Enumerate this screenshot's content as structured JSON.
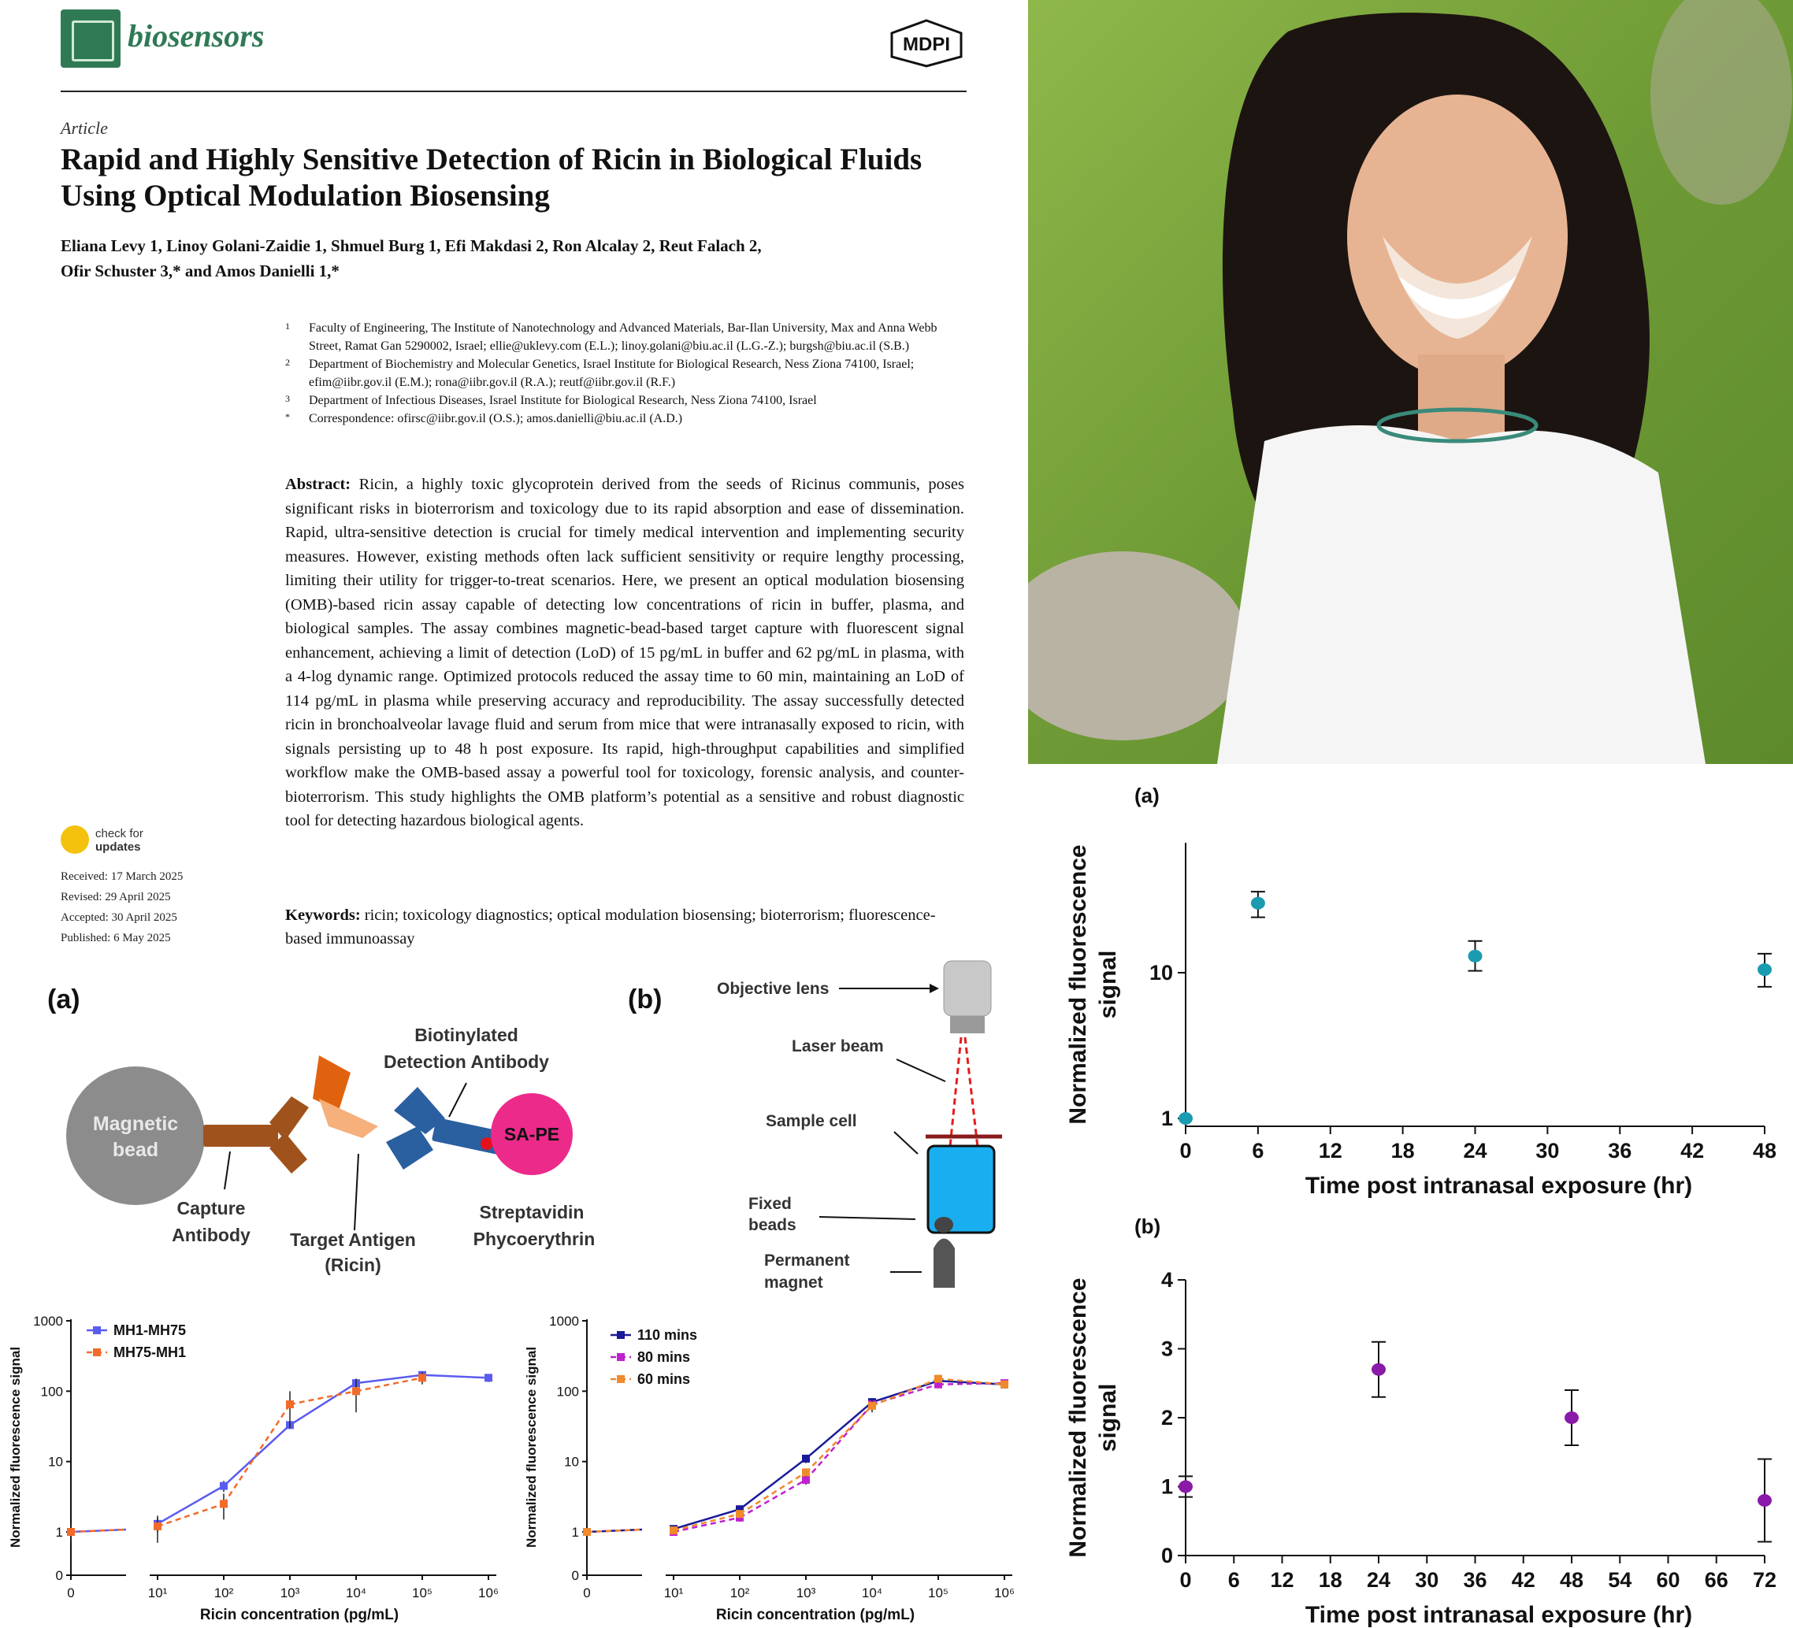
{
  "paper": {
    "journal": "biosensors",
    "publisher_logo_text": "MDPI",
    "article_type": "Article",
    "title": "Rapid and Highly Sensitive Detection of Ricin in Biological Fluids Using Optical Modulation Biosensing",
    "authors_line1": "Eliana Levy 1, Linoy Golani-Zaidie 1, Shmuel Burg 1, Efi Makdasi 2, Ron Alcalay 2, Reut Falach 2,",
    "authors_line2": "Ofir Schuster 3,* and Amos Danielli 1,*",
    "affiliations": [
      {
        "num": "1",
        "text": "Faculty of Engineering, The Institute of Nanotechnology and Advanced Materials, Bar-Ilan University, Max and Anna Webb Street, Ramat Gan 5290002, Israel; ellie@uklevy.com (E.L.); linoy.golani@biu.ac.il (L.G.-Z.); burgsh@biu.ac.il (S.B.)"
      },
      {
        "num": "2",
        "text": "Department of Biochemistry and Molecular Genetics, Israel Institute for Biological Research, Ness Ziona 74100, Israel; efim@iibr.gov.il (E.M.); rona@iibr.gov.il (R.A.); reutf@iibr.gov.il (R.F.)"
      },
      {
        "num": "3",
        "text": "Department of Infectious Diseases, Israel Institute for Biological Research, Ness Ziona 74100, Israel"
      },
      {
        "num": "*",
        "text": "Correspondence: ofirsc@iibr.gov.il (O.S.); amos.danielli@biu.ac.il (A.D.)"
      }
    ],
    "abstract_label": "Abstract:",
    "abstract": "Ricin, a highly toxic glycoprotein derived from the seeds of Ricinus communis, poses significant risks in bioterrorism and toxicology due to its rapid absorption and ease of dissemination. Rapid, ultra-sensitive detection is crucial for timely medical intervention and implementing security measures. However, existing methods often lack sufficient sensitivity or require lengthy processing, limiting their utility for trigger-to-treat scenarios. Here, we present an optical modulation biosensing (OMB)-based ricin assay capable of detecting low concentrations of ricin in buffer, plasma, and biological samples. The assay combines magnetic-bead-based target capture with fluorescent signal enhancement, achieving a limit of detection (LoD) of 15 pg/mL in buffer and 62 pg/mL in plasma, with a 4-log dynamic range. Optimized protocols reduced the assay time to 60 min, maintaining an LoD of 114 pg/mL in plasma while preserving accuracy and reproducibility. The assay successfully detected ricin in bronchoalveolar lavage fluid and serum from mice that were intranasally exposed to ricin, with signals persisting up to 48 h post exposure. Its rapid, high-throughput capabilities and simplified workflow make the OMB-based assay a powerful tool for toxicology, forensic analysis, and counter-bioterrorism. This study highlights the OMB platform’s potential as a sensitive and robust diagnostic tool for detecting hazardous biological agents.",
    "keywords_label": "Keywords:",
    "keywords": "ricin; toxicology diagnostics; optical modulation biosensing; bioterrorism; fluorescence-based immunoassay",
    "check_updates_line1": "check for",
    "check_updates_line2": "updates",
    "dates": [
      "Received: 17 March 2025",
      "Revised: 29 April 2025",
      "Accepted: 30 April 2025",
      "Published: 6 May 2025"
    ]
  },
  "schematic_a": {
    "label": "(a)",
    "magnetic_bead": "Magnetic bead",
    "magnetic_line1": "Magnetic",
    "magnetic_line2": "bead",
    "capture_line1": "Capture",
    "capture_line2": "Antibody",
    "target_line1": "Target Antigen",
    "target_line2": "(Ricin)",
    "biotin_line1": "Biotinylated",
    "biotin_line2": "Detection Antibody",
    "sape": "SA-PE",
    "strep_line1": "Streptavidin",
    "strep_line2": "Phycoerythrin",
    "colors": {
      "bead": "#8c8c8c",
      "capture": "#a0521c",
      "antigen_dark": "#e0620f",
      "antigen_light": "#f6b07c",
      "detection": "#2a5fa0",
      "sape": "#ec2a8a",
      "biotin": "#e4101c"
    }
  },
  "schematic_b": {
    "label": "(b)",
    "objective": "Objective lens",
    "laser": "Laser beam",
    "sample_cell": "Sample cell",
    "fixed_line1": "Fixed",
    "fixed_line2": "beads",
    "perm_line1": "Permanent",
    "perm_line2": "magnet",
    "colors": {
      "cell": "#19aef0",
      "laser": "#e41c1c",
      "arrow": "#8b1a1a"
    }
  },
  "chart_data": [
    {
      "type": "line",
      "ylabel": "Normalized fluorescence signal",
      "xlabel": "Ricin concentration (pg/mL)",
      "yscale": "log",
      "ylim": [
        0,
        1000
      ],
      "yticks": [
        "1000",
        "100",
        "10",
        "1",
        "0"
      ],
      "xticks": [
        "0",
        "10¹",
        "10²",
        "10³",
        "10⁴",
        "10⁵",
        "10⁶"
      ],
      "x": [
        0,
        10,
        100,
        1000,
        10000,
        100000,
        1000000
      ],
      "series": [
        {
          "name": "MH1-MH75",
          "color": "#5b5bf0",
          "values": [
            1,
            1.3,
            4.5,
            33,
            130,
            170,
            155
          ],
          "err": [
            0.3,
            0.3,
            0.8,
            4,
            20,
            15,
            20
          ]
        },
        {
          "name": "MH75-MH1",
          "color": "#f26b2a",
          "values": [
            1,
            1.2,
            2.5,
            65,
            100,
            155,
            null
          ],
          "err": [
            0.2,
            0.5,
            1,
            35,
            50,
            30,
            null
          ]
        }
      ]
    },
    {
      "type": "line",
      "ylabel": "Normalized fluorescence signal",
      "xlabel": "Ricin concentration (pg/mL)",
      "yscale": "log",
      "ylim": [
        0,
        1000
      ],
      "yticks": [
        "1000",
        "100",
        "10",
        "1",
        "0"
      ],
      "xticks": [
        "0",
        "10¹",
        "10²",
        "10³",
        "10⁴",
        "10⁵",
        "10⁶"
      ],
      "x": [
        0,
        10,
        100,
        1000,
        10000,
        100000,
        1000000
      ],
      "series": [
        {
          "name": "110 mins",
          "color": "#1a1a9a",
          "values": [
            1,
            1.1,
            2.1,
            11,
            70,
            140,
            125
          ],
          "err": [
            0.1,
            0.1,
            0.2,
            1.5,
            10,
            20,
            15
          ]
        },
        {
          "name": "80 mins",
          "color": "#c020d0",
          "values": [
            1,
            1.0,
            1.6,
            5.5,
            65,
            125,
            130
          ],
          "err": [
            0.1,
            0.1,
            0.2,
            0.8,
            10,
            15,
            15
          ]
        },
        {
          "name": "60 mins",
          "color": "#f08a2a",
          "values": [
            1,
            1.05,
            1.8,
            7,
            62,
            150,
            125
          ],
          "err": [
            0.1,
            0.1,
            0.2,
            1,
            12,
            20,
            15
          ]
        }
      ]
    },
    {
      "type": "scatter",
      "panel_label": "(a)",
      "ylabel_line1": "Normalized fluorescence",
      "ylabel_line2": "signal",
      "xlabel": "Time post intranasal exposure (hr)",
      "yscale": "log",
      "yticks": [
        "10",
        "1"
      ],
      "xticks": [
        "0",
        "6",
        "12",
        "18",
        "24",
        "30",
        "36",
        "42",
        "48"
      ],
      "xlim": [
        0,
        48
      ],
      "color": "#1a9bb0",
      "x": [
        0,
        6,
        24,
        48
      ],
      "y": [
        1,
        30,
        13,
        10.5
      ],
      "err_low": [
        1,
        24,
        10.3,
        8
      ],
      "err_high": [
        1,
        36,
        16.5,
        13.5
      ]
    },
    {
      "type": "scatter",
      "panel_label": "(b)",
      "ylabel_line1": "Normalized fluorescence",
      "ylabel_line2": "signal",
      "xlabel": "Time post intranasal exposure (hr)",
      "yticks": [
        "4",
        "3",
        "2",
        "1",
        "0"
      ],
      "ylim": [
        0,
        4
      ],
      "xticks": [
        "0",
        "6",
        "12",
        "18",
        "24",
        "30",
        "36",
        "42",
        "48",
        "54",
        "60",
        "66",
        "72"
      ],
      "xlim": [
        0,
        72
      ],
      "color": "#8a1aa8",
      "x": [
        0,
        24,
        48,
        72
      ],
      "y": [
        1.0,
        2.7,
        2.0,
        0.8
      ],
      "err_low": [
        0.85,
        2.3,
        1.6,
        0.2
      ],
      "err_high": [
        1.15,
        3.1,
        2.4,
        1.4
      ]
    }
  ]
}
